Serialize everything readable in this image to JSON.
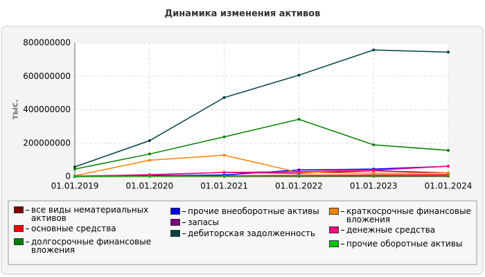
{
  "chart_data": {
    "type": "line",
    "title": "Динамика изменения активов",
    "y_label": "тыс.",
    "categories": [
      "01.01.2019",
      "01.01.2020",
      "01.01.2021",
      "01.01.2022",
      "01.01.2023",
      "01.01.2024"
    ],
    "ylim": [
      0,
      800000000
    ],
    "yticks": [
      0,
      200000000,
      400000000,
      600000000,
      800000000
    ],
    "grid": true,
    "series": [
      {
        "name": "все виды нематериальных активов",
        "color": "#800000",
        "values": [
          0,
          1000000,
          1000000,
          2000000,
          2000000,
          3000000
        ]
      },
      {
        "name": "основные средства",
        "color": "#ff0000",
        "values": [
          2000000,
          3000000,
          5000000,
          8000000,
          10000000,
          12000000
        ]
      },
      {
        "name": "долгосрочные финансовые вложения",
        "color": "#008000",
        "values": [
          45000000,
          135000000,
          238000000,
          343000000,
          190000000,
          157000000
        ]
      },
      {
        "name": "прочие внеоборотные активы",
        "color": "#0000ff",
        "values": [
          0,
          5000000,
          10000000,
          40000000,
          45000000,
          62000000
        ]
      },
      {
        "name": "запасы",
        "color": "#800080",
        "values": [
          3000000,
          10000000,
          25000000,
          20000000,
          35000000,
          22000000
        ]
      },
      {
        "name": "дебиторская задолженность",
        "color": "#004040",
        "values": [
          58000000,
          215000000,
          473000000,
          607000000,
          758000000,
          745000000
        ]
      },
      {
        "name": "краткосрочные финансовые вложения",
        "color": "#ff8000",
        "values": [
          5000000,
          98000000,
          128000000,
          25000000,
          20000000,
          22000000
        ]
      },
      {
        "name": "денежные средства",
        "color": "#ff0080",
        "values": [
          2000000,
          12000000,
          25000000,
          30000000,
          38000000,
          62000000
        ]
      },
      {
        "name": "прочие оборотные активы",
        "color": "#00c000",
        "values": [
          1000000,
          2000000,
          3000000,
          5000000,
          5000000,
          6000000
        ]
      }
    ]
  }
}
